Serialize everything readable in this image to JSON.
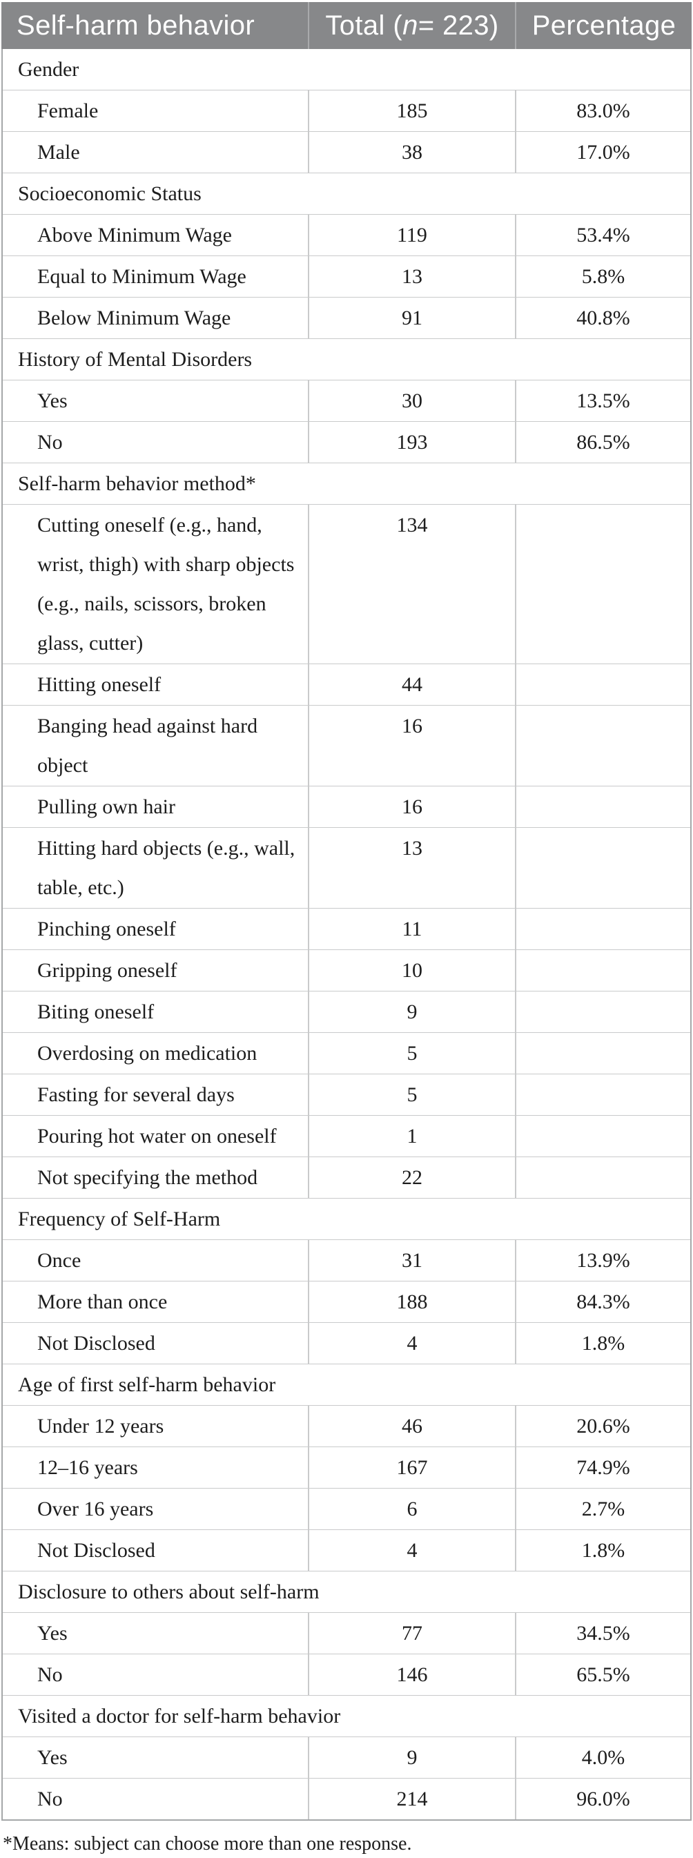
{
  "table": {
    "header": {
      "col1": "Self-harm behavior",
      "col2_pre": "Total (",
      "col2_italic": "n",
      "col2_post": " = 223)",
      "col3": "Percentage"
    },
    "rows": [
      {
        "type": "section",
        "label": "Gender"
      },
      {
        "type": "data",
        "label": "Female",
        "total": "185",
        "pct": "83.0%"
      },
      {
        "type": "data",
        "label": "Male",
        "total": "38",
        "pct": "17.0%"
      },
      {
        "type": "section",
        "label": "Socioeconomic Status"
      },
      {
        "type": "data",
        "label": "Above Minimum Wage",
        "total": "119",
        "pct": "53.4%"
      },
      {
        "type": "data",
        "label": "Equal to Minimum Wage",
        "total": "13",
        "pct": "5.8%"
      },
      {
        "type": "data",
        "label": "Below Minimum Wage",
        "total": "91",
        "pct": "40.8%"
      },
      {
        "type": "section",
        "label": "History of Mental Disorders"
      },
      {
        "type": "data",
        "label": "Yes",
        "total": "30",
        "pct": "13.5%"
      },
      {
        "type": "data",
        "label": "No",
        "total": "193",
        "pct": "86.5%"
      },
      {
        "type": "section",
        "label": "Self-harm behavior method*"
      },
      {
        "type": "data",
        "label": "Cutting oneself (e.g., hand,\nwrist, thigh) with sharp objects\n(e.g., nails, scissors, broken\nglass, cutter)",
        "total": "134",
        "pct": ""
      },
      {
        "type": "data",
        "label": "Hitting oneself",
        "total": "44",
        "pct": ""
      },
      {
        "type": "data",
        "label": "Banging head against hard\nobject",
        "total": "16",
        "pct": ""
      },
      {
        "type": "data",
        "label": "Pulling own hair",
        "total": "16",
        "pct": ""
      },
      {
        "type": "data",
        "label": "Hitting hard objects (e.g., wall,\ntable, etc.)",
        "total": "13",
        "pct": ""
      },
      {
        "type": "data",
        "label": "Pinching oneself",
        "total": "11",
        "pct": ""
      },
      {
        "type": "data",
        "label": "Gripping oneself",
        "total": "10",
        "pct": ""
      },
      {
        "type": "data",
        "label": "Biting oneself",
        "total": "9",
        "pct": ""
      },
      {
        "type": "data",
        "label": "Overdosing on medication",
        "total": "5",
        "pct": ""
      },
      {
        "type": "data",
        "label": "Fasting for several days",
        "total": "5",
        "pct": ""
      },
      {
        "type": "data",
        "label": "Pouring hot water on oneself",
        "total": "1",
        "pct": ""
      },
      {
        "type": "data",
        "label": "Not specifying the method",
        "total": "22",
        "pct": ""
      },
      {
        "type": "section",
        "label": "Frequency of Self-Harm"
      },
      {
        "type": "data",
        "label": "Once",
        "total": "31",
        "pct": "13.9%"
      },
      {
        "type": "data",
        "label": "More than once",
        "total": "188",
        "pct": "84.3%"
      },
      {
        "type": "data",
        "label": "Not Disclosed",
        "total": "4",
        "pct": "1.8%"
      },
      {
        "type": "section",
        "label": "Age of first self-harm behavior"
      },
      {
        "type": "data",
        "label": "Under 12 years",
        "total": "46",
        "pct": "20.6%"
      },
      {
        "type": "data",
        "label": "12–16 years",
        "total": "167",
        "pct": "74.9%"
      },
      {
        "type": "data",
        "label": "Over 16 years",
        "total": "6",
        "pct": "2.7%"
      },
      {
        "type": "data",
        "label": "Not Disclosed",
        "total": "4",
        "pct": "1.8%"
      },
      {
        "type": "section",
        "label": "Disclosure to others about self-harm"
      },
      {
        "type": "data",
        "label": "Yes",
        "total": "77",
        "pct": "34.5%"
      },
      {
        "type": "data",
        "label": "No",
        "total": "146",
        "pct": "65.5%"
      },
      {
        "type": "section",
        "label": "Visited a doctor for self-harm behavior"
      },
      {
        "type": "data",
        "label": "Yes",
        "total": "9",
        "pct": "4.0%"
      },
      {
        "type": "data",
        "label": "No",
        "total": "214",
        "pct": "96.0%"
      }
    ],
    "footnote": "*Means: subject can choose more than one response.",
    "colors": {
      "header_bg": "#87888a",
      "header_text": "#ffffff",
      "header_divider": "#a9aaac",
      "row_border": "#c9cacb",
      "outer_border": "#a5a7a9",
      "body_text": "#1d1d1d"
    }
  }
}
